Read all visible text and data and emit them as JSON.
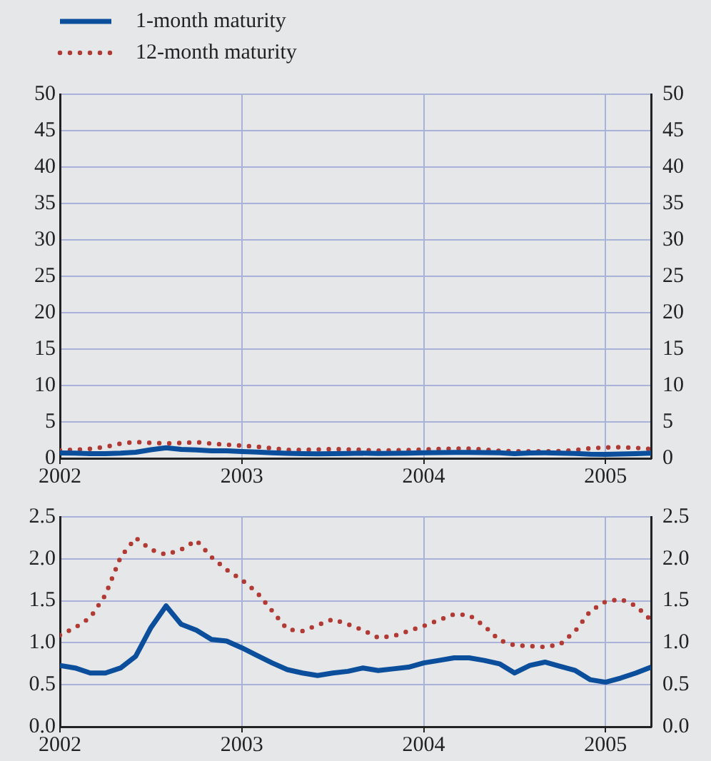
{
  "chart_data": [
    {
      "type": "line",
      "x": [
        "2002-01",
        "2002-02",
        "2002-03",
        "2002-04",
        "2002-05",
        "2002-06",
        "2002-07",
        "2002-08",
        "2002-09",
        "2002-10",
        "2002-11",
        "2002-12",
        "2003-01",
        "2003-02",
        "2003-03",
        "2003-04",
        "2003-05",
        "2003-06",
        "2003-07",
        "2003-08",
        "2003-09",
        "2003-10",
        "2003-11",
        "2003-12",
        "2004-01",
        "2004-02",
        "2004-03",
        "2004-04",
        "2004-05",
        "2004-06",
        "2004-07",
        "2004-08",
        "2004-09",
        "2004-10",
        "2004-11",
        "2004-12",
        "2005-01",
        "2005-02",
        "2005-03",
        "2005-04"
      ],
      "series": [
        {
          "name": "1-month maturity",
          "color": "#0b4f9c",
          "line_style": "solid",
          "values": [
            0.73,
            0.7,
            0.64,
            0.64,
            0.7,
            0.84,
            1.18,
            1.44,
            1.22,
            1.15,
            1.04,
            1.02,
            0.94,
            0.85,
            0.76,
            0.68,
            0.64,
            0.61,
            0.64,
            0.66,
            0.7,
            0.67,
            0.69,
            0.71,
            0.76,
            0.79,
            0.82,
            0.82,
            0.79,
            0.75,
            0.64,
            0.73,
            0.77,
            0.72,
            0.67,
            0.56,
            0.53,
            0.58,
            0.64,
            0.71
          ]
        },
        {
          "name": "12-month maturity",
          "color": "#b23a35",
          "line_style": "dotted",
          "values": [
            1.09,
            1.18,
            1.3,
            1.57,
            2.02,
            2.25,
            2.11,
            2.05,
            2.11,
            2.22,
            2.02,
            1.87,
            1.75,
            1.6,
            1.38,
            1.16,
            1.14,
            1.21,
            1.28,
            1.22,
            1.15,
            1.06,
            1.08,
            1.14,
            1.2,
            1.27,
            1.34,
            1.33,
            1.2,
            1.03,
            0.97,
            0.96,
            0.95,
            0.98,
            1.14,
            1.38,
            1.49,
            1.52,
            1.44,
            1.27
          ]
        }
      ],
      "xlim": [
        "2002-01",
        "2005-04"
      ],
      "xticks": [
        "2002",
        "2003",
        "2004",
        "2005"
      ],
      "ylim": [
        0,
        50
      ],
      "yticks": [
        0,
        5,
        10,
        15,
        20,
        25,
        30,
        35,
        40,
        45,
        50
      ],
      "y2lim": [
        0,
        50
      ],
      "y2ticks": [
        0,
        5,
        10,
        15,
        20,
        25,
        30,
        35,
        40,
        45,
        50
      ],
      "grid": true,
      "legend": "top left"
    },
    {
      "type": "line",
      "x": [
        "2002-01",
        "2002-02",
        "2002-03",
        "2002-04",
        "2002-05",
        "2002-06",
        "2002-07",
        "2002-08",
        "2002-09",
        "2002-10",
        "2002-11",
        "2002-12",
        "2003-01",
        "2003-02",
        "2003-03",
        "2003-04",
        "2003-05",
        "2003-06",
        "2003-07",
        "2003-08",
        "2003-09",
        "2003-10",
        "2003-11",
        "2003-12",
        "2004-01",
        "2004-02",
        "2004-03",
        "2004-04",
        "2004-05",
        "2004-06",
        "2004-07",
        "2004-08",
        "2004-09",
        "2004-10",
        "2004-11",
        "2004-12",
        "2005-01",
        "2005-02",
        "2005-03",
        "2005-04"
      ],
      "series": [
        {
          "color": "#0b4f9c",
          "line_style": "solid",
          "values": [
            0.73,
            0.7,
            0.64,
            0.64,
            0.7,
            0.84,
            1.18,
            1.44,
            1.22,
            1.15,
            1.04,
            1.02,
            0.94,
            0.85,
            0.76,
            0.68,
            0.64,
            0.61,
            0.64,
            0.66,
            0.7,
            0.67,
            0.69,
            0.71,
            0.76,
            0.79,
            0.82,
            0.82,
            0.79,
            0.75,
            0.64,
            0.73,
            0.77,
            0.72,
            0.67,
            0.56,
            0.53,
            0.58,
            0.64,
            0.71
          ]
        },
        {
          "color": "#b23a35",
          "line_style": "dotted",
          "values": [
            1.09,
            1.18,
            1.3,
            1.57,
            2.02,
            2.25,
            2.11,
            2.05,
            2.11,
            2.22,
            2.02,
            1.87,
            1.75,
            1.6,
            1.38,
            1.16,
            1.14,
            1.21,
            1.28,
            1.22,
            1.15,
            1.06,
            1.08,
            1.14,
            1.2,
            1.27,
            1.34,
            1.33,
            1.2,
            1.03,
            0.97,
            0.96,
            0.95,
            0.98,
            1.14,
            1.38,
            1.49,
            1.52,
            1.44,
            1.27
          ]
        }
      ],
      "xlim": [
        "2002-01",
        "2005-04"
      ],
      "xticks": [
        "2002",
        "2003",
        "2004",
        "2005"
      ],
      "ylim": [
        0,
        2.5
      ],
      "yticks": [
        {
          "value": 0,
          "label": "0.0"
        },
        {
          "value": 0.5,
          "label": "0.5"
        },
        {
          "value": 1,
          "label": "1.0"
        },
        {
          "value": 1.5,
          "label": "1.5"
        },
        {
          "value": 2,
          "label": "2.0"
        },
        {
          "value": 2.5,
          "label": "2.5"
        }
      ],
      "y2lim": [
        0,
        2.5
      ],
      "y2ticks": [
        {
          "value": 0,
          "label": "0.0"
        },
        {
          "value": 0.5,
          "label": "0.5"
        },
        {
          "value": 1,
          "label": "1.0"
        },
        {
          "value": 1.5,
          "label": "1.5"
        },
        {
          "value": 2,
          "label": "2.0"
        },
        {
          "value": 2.5,
          "label": "2.5"
        }
      ],
      "grid": true
    }
  ]
}
